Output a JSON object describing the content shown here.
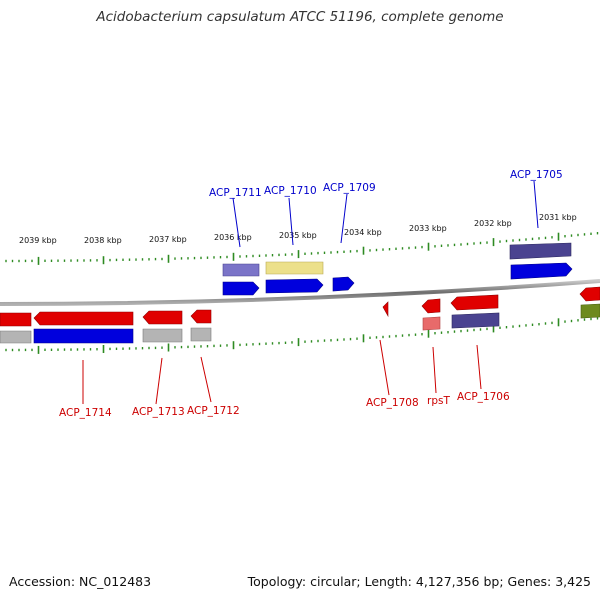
{
  "title": "Acidobacterium capsulatum ATCC 51196, complete genome",
  "accession": "Accession: NC_012483",
  "summary": "Topology: circular; Length: 4,127,356 bp; Genes: 3,425",
  "colors": {
    "backbone": "#8a8a8a",
    "tick": "#2e8b22",
    "red": "#e00000",
    "blue": "#0000dd",
    "purple": "#4a4390",
    "lavender": "#7b74c8",
    "khaki": "#ece08a",
    "gray": "#b4b4b4",
    "pink": "#e86a6a",
    "olive": "#6e8a1e",
    "upper_label": "#0000cc",
    "lower_label": "#cc0000"
  },
  "kbp_labels": [
    "2039 kbp",
    "2038 kbp",
    "2037 kbp",
    "2036 kbp",
    "2035 kbp",
    "2034 kbp",
    "2033 kbp",
    "2032 kbp",
    "2031 kbp"
  ],
  "upper_gene_labels": [
    "ACP_1711",
    "ACP_1710",
    "ACP_1709",
    "ACP_1705"
  ],
  "lower_gene_labels": [
    "ACP_1714",
    "ACP_1713",
    "ACP_1712",
    "ACP_1708",
    "rpsT",
    "ACP_1706"
  ]
}
